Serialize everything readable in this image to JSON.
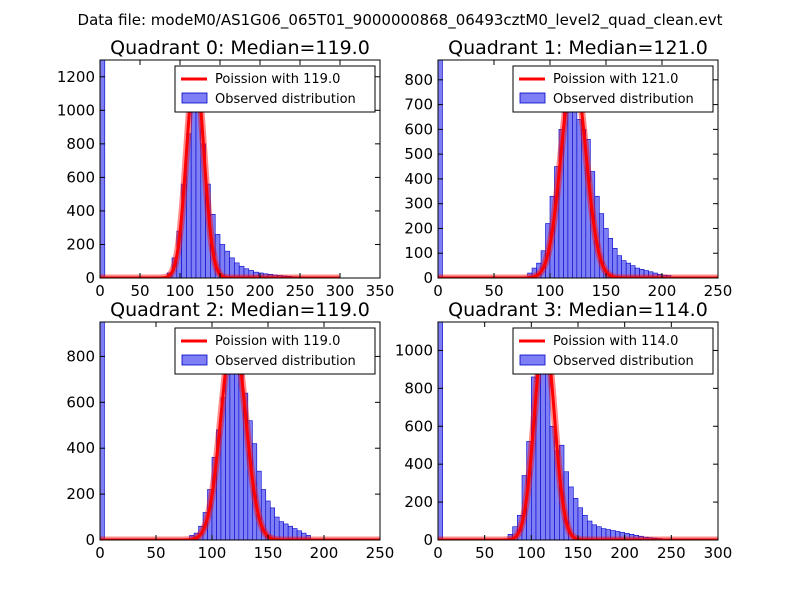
{
  "suptitle": "Data file: modeM0/AS1G06_065T01_9000000868_06493cztM0_level2_quad_clean.evt",
  "colors": {
    "bar_fill": "#7f7ff5",
    "bar_edge": "#0000c8",
    "poisson": "#ff0000",
    "frame": "#000000"
  },
  "chart_data": [
    {
      "type": "bar",
      "title": "Quadrant 0: Median=119.0",
      "xlim": [
        0,
        350
      ],
      "ylim": [
        0,
        1300
      ],
      "xticks": [
        0,
        50,
        100,
        150,
        200,
        250,
        300,
        350
      ],
      "yticks": [
        0,
        200,
        400,
        600,
        800,
        1000,
        1200
      ],
      "bin_width": 6,
      "bin_lefts": [
        0,
        84,
        90,
        96,
        102,
        108,
        114,
        120,
        126,
        132,
        138,
        144,
        150,
        156,
        162,
        168,
        174,
        180,
        186,
        192,
        198,
        204,
        210,
        216,
        222,
        228,
        234,
        240,
        246
      ],
      "counts": [
        1300,
        30,
        120,
        280,
        560,
        860,
        1040,
        1060,
        800,
        560,
        380,
        260,
        200,
        160,
        120,
        90,
        70,
        55,
        45,
        35,
        30,
        25,
        22,
        18,
        15,
        12,
        10,
        8,
        6
      ],
      "poisson_mean": 119.0,
      "poisson_peak": 1240,
      "legend": [
        "Poission with 119.0",
        "Observed distribution"
      ]
    },
    {
      "type": "bar",
      "title": "Quadrant 1: Median=121.0",
      "xlim": [
        0,
        250
      ],
      "ylim": [
        0,
        880
      ],
      "xticks": [
        0,
        50,
        100,
        150,
        200,
        250
      ],
      "yticks": [
        0,
        100,
        200,
        300,
        400,
        500,
        600,
        700,
        800
      ],
      "bin_width": 4,
      "bin_lefts": [
        0,
        80,
        84,
        88,
        92,
        96,
        100,
        104,
        108,
        112,
        116,
        120,
        124,
        128,
        132,
        136,
        140,
        144,
        148,
        152,
        156,
        160,
        164,
        168,
        172,
        176,
        180,
        184,
        188,
        192,
        196,
        200,
        204
      ],
      "counts": [
        880,
        20,
        40,
        60,
        110,
        220,
        330,
        450,
        600,
        760,
        720,
        690,
        640,
        600,
        560,
        430,
        330,
        260,
        200,
        160,
        120,
        90,
        70,
        60,
        50,
        40,
        35,
        30,
        25,
        20,
        15,
        12,
        10
      ],
      "poisson_mean": 121.0,
      "poisson_peak": 840,
      "legend": [
        "Poission with 121.0",
        "Observed distribution"
      ]
    },
    {
      "type": "bar",
      "title": "Quadrant 2: Median=119.0",
      "xlim": [
        0,
        250
      ],
      "ylim": [
        0,
        950
      ],
      "xticks": [
        0,
        50,
        100,
        150,
        200,
        250
      ],
      "yticks": [
        0,
        200,
        400,
        600,
        800
      ],
      "bin_width": 4,
      "bin_lefts": [
        0,
        80,
        84,
        88,
        92,
        96,
        100,
        104,
        108,
        112,
        116,
        120,
        124,
        128,
        132,
        136,
        140,
        144,
        148,
        152,
        156,
        160,
        164,
        168,
        172,
        176,
        180,
        184
      ],
      "counts": [
        950,
        20,
        30,
        60,
        120,
        220,
        360,
        480,
        620,
        740,
        800,
        860,
        760,
        640,
        520,
        420,
        300,
        220,
        170,
        140,
        100,
        80,
        70,
        60,
        50,
        40,
        30,
        20
      ],
      "poisson_mean": 119.0,
      "poisson_peak": 900,
      "legend": [
        "Poission with 119.0",
        "Observed distribution"
      ]
    },
    {
      "type": "bar",
      "title": "Quadrant 3: Median=114.0",
      "xlim": [
        0,
        300
      ],
      "ylim": [
        0,
        1150
      ],
      "xticks": [
        0,
        50,
        100,
        150,
        200,
        250,
        300
      ],
      "yticks": [
        0,
        200,
        400,
        600,
        800,
        1000
      ],
      "bin_width": 5,
      "bin_lefts": [
        0,
        75,
        80,
        85,
        90,
        95,
        100,
        105,
        110,
        115,
        120,
        125,
        130,
        135,
        140,
        145,
        150,
        155,
        160,
        165,
        170,
        175,
        180,
        185,
        190,
        195,
        200,
        205,
        210,
        215,
        220,
        225,
        230,
        235,
        240
      ],
      "counts": [
        1150,
        30,
        70,
        130,
        340,
        520,
        860,
        980,
        1060,
        880,
        600,
        470,
        500,
        360,
        280,
        220,
        170,
        130,
        100,
        80,
        70,
        60,
        55,
        50,
        45,
        40,
        35,
        30,
        25,
        20,
        15,
        12,
        10,
        8,
        6
      ],
      "poisson_mean": 114.0,
      "poisson_peak": 1090,
      "legend": [
        "Poission with 114.0",
        "Observed distribution"
      ]
    }
  ]
}
